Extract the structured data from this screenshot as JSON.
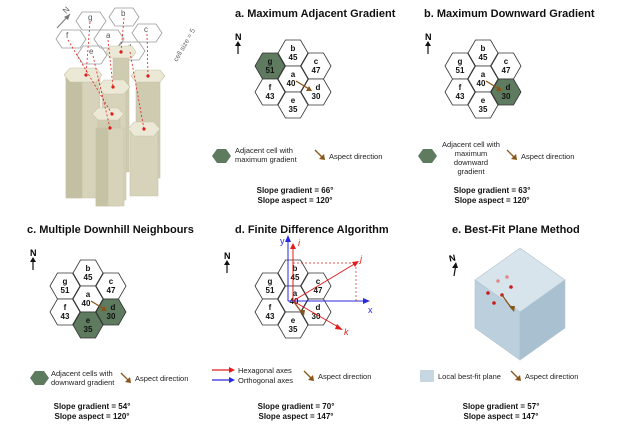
{
  "colors": {
    "highlight": "#5f7b5f",
    "arrow": "#8a5518",
    "red": "#e21d1d",
    "blue": "#2a2ae0",
    "plane": "#c6d7e2",
    "column": "#dcd9c0"
  },
  "iso": {
    "north_letter": "N",
    "cell_size": "cell size = 5",
    "cells": [
      "g",
      "b",
      "f",
      "a",
      "c",
      "e",
      "d"
    ]
  },
  "panel_a": {
    "title": "a. Maximum Adjacent Gradient",
    "north": "N",
    "legend_cell": "Adjacent cell with maximum gradient",
    "legend_arrow": "Aspect direction",
    "gradient": "Slope gradient = 66°",
    "aspect": "Slope aspect = 120°"
  },
  "panel_b": {
    "title": "b. Maximum Downward Gradient",
    "north": "N",
    "legend_cell": "Adjacent cell with maximum downward gradient",
    "legend_arrow": "Aspect direction",
    "gradient": "Slope gradient = 63°",
    "aspect": "Slope aspect = 120°"
  },
  "panel_c": {
    "title": "c. Multiple Downhill Neighbours",
    "north": "N",
    "legend_cell": "Adjacent cells with downward gradient",
    "legend_arrow": "Aspect direction",
    "gradient": "Slope gradient = 54°",
    "aspect": "Slope aspect = 120°"
  },
  "panel_d": {
    "title": "d. Finite Difference Algorithm",
    "north": "N",
    "legend_hex": "Hexagonal axes",
    "legend_orth": "Orthogonal axes",
    "legend_arrow": "Aspect direction",
    "gradient": "Slope gradient = 70°",
    "aspect": "Slope aspect = 147°",
    "axis_y": "y",
    "axis_x": "x",
    "axis_i": "i",
    "axis_j": "j",
    "axis_k": "k"
  },
  "panel_e": {
    "title": "e. Best-Fit Plane Method",
    "north": "N",
    "legend_plane": "Local best-fit plane",
    "legend_arrow": "Aspect direction",
    "gradient": "Slope gradient = 57°",
    "aspect": "Slope aspect = 147°"
  },
  "grid": {
    "b": {
      "name": "b",
      "value": "45"
    },
    "g": {
      "name": "g",
      "value": "51"
    },
    "c": {
      "name": "c",
      "value": "47"
    },
    "a": {
      "name": "a",
      "value": "40"
    },
    "f": {
      "name": "f",
      "value": "43"
    },
    "d": {
      "name": "d",
      "value": "30"
    },
    "e": {
      "name": "e",
      "value": "35"
    }
  }
}
